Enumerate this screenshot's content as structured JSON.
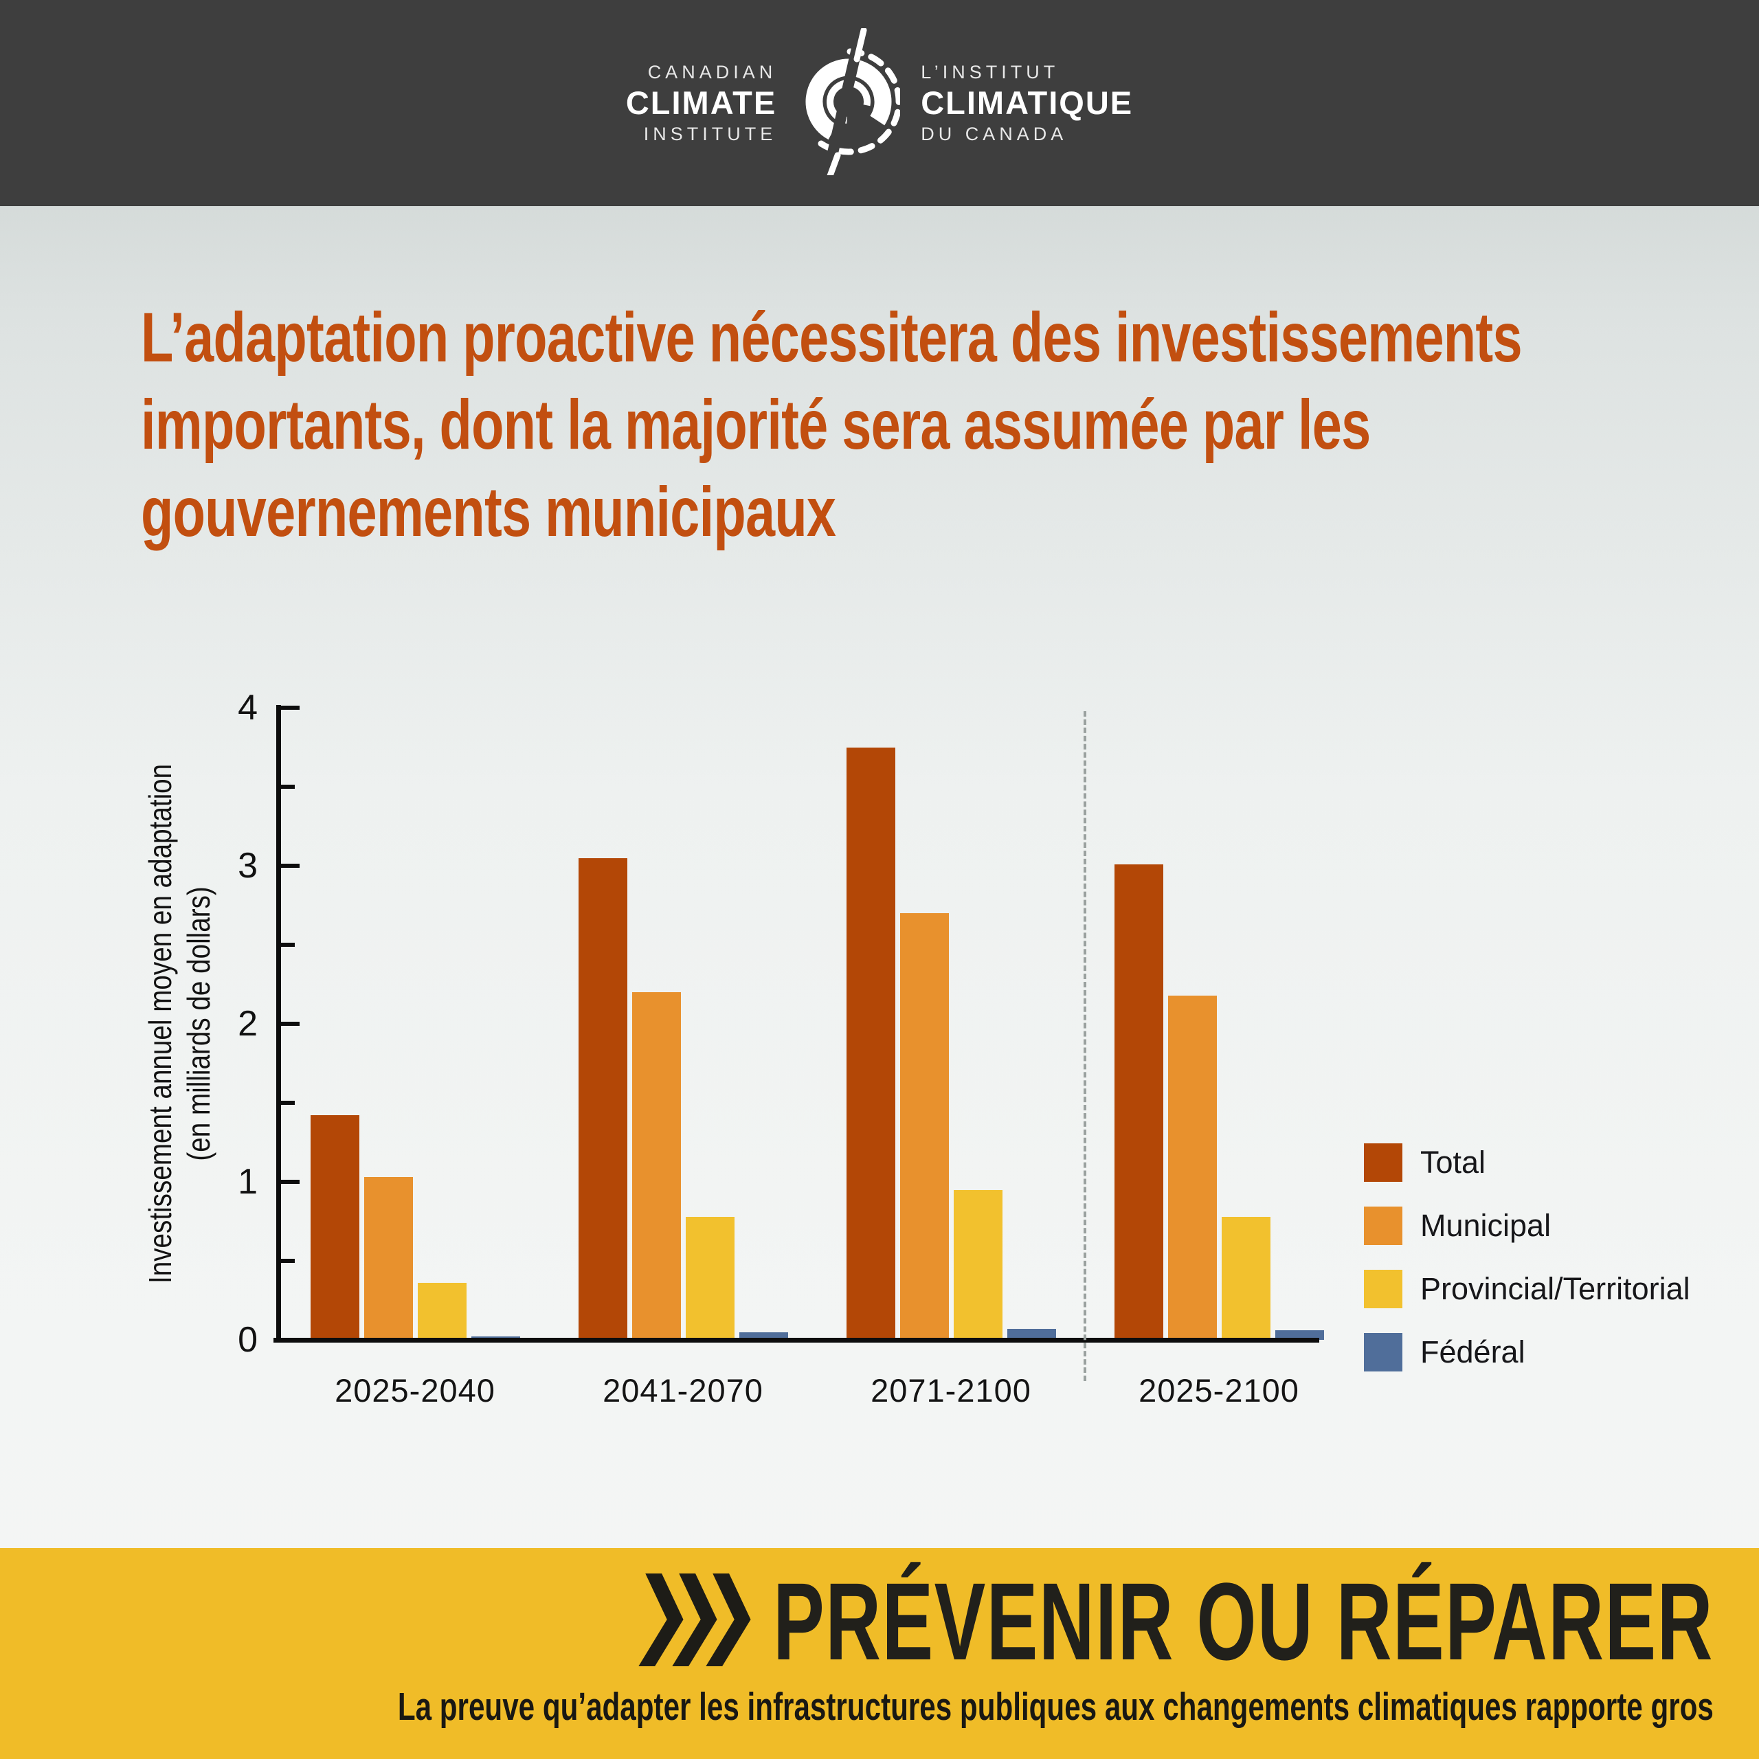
{
  "header": {
    "logo": {
      "left_line1": "CANADIAN",
      "left_line2": "CLIMATE",
      "left_line3": "INSTITUTE",
      "right_line1": "L’INSTITUT",
      "right_line2": "CLIMATIQUE",
      "right_line3": "DU CANADA"
    },
    "background": "#3e3e3e"
  },
  "headline": {
    "line1": "L’adaptation proactive nécessitera des investissements",
    "line2": "importants, dont la majorité sera assumée par les",
    "line3": "gouvernements municipaux",
    "color": "#c24f10"
  },
  "chart_data": {
    "type": "bar",
    "categories": [
      "2025-2040",
      "2041-2070",
      "2071-2100",
      "2025-2100"
    ],
    "series": [
      {
        "name": "Total",
        "color": "#b34706",
        "values": [
          1.42,
          3.05,
          3.75,
          3.01
        ]
      },
      {
        "name": "Municipal",
        "color": "#e8912d",
        "values": [
          1.03,
          2.2,
          2.7,
          2.18
        ]
      },
      {
        "name": "Provincial/Territorial",
        "color": "#f2c12e",
        "values": [
          0.36,
          0.78,
          0.95,
          0.78
        ]
      },
      {
        "name": "Fédéral",
        "color": "#506e9a",
        "values": [
          0.02,
          0.05,
          0.07,
          0.06
        ]
      }
    ],
    "title": "",
    "xlabel": "",
    "ylabel_line1": "Investissement annuel moyen en adaptation",
    "ylabel_line2": "(en milliards de dollars)",
    "ylim": [
      0,
      4
    ],
    "yticks": [
      0,
      1,
      2,
      3,
      4
    ],
    "minor_yticks": [
      0.5,
      1.5,
      2.5,
      3.5
    ],
    "grid": false,
    "legend_position": "right",
    "divider_between": [
      "2071-2100",
      "2025-2100"
    ]
  },
  "footer": {
    "title": "PRÉVENIR OU RÉPARER",
    "subtitle": "La preuve qu’adapter les infrastructures publiques aux changements climatiques rapporte gros",
    "background": "#f0bc28",
    "chevrons_icon": "triple-chevron-right"
  }
}
